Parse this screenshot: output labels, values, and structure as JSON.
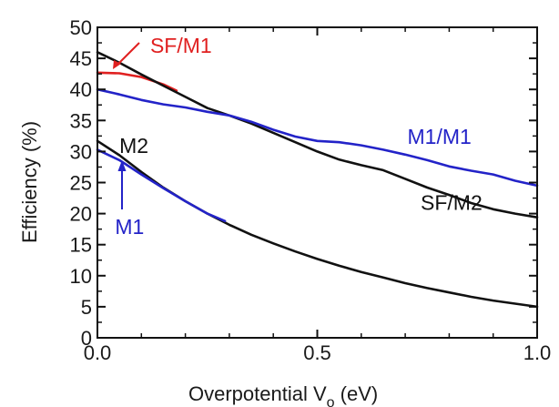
{
  "chart_data": {
    "type": "line",
    "title": "",
    "xlabel": "Overpotential  V",
    "xlabel_sub": "o",
    "xlabel_unit": " (eV)",
    "ylabel": "Efficiency (%)",
    "xlim": [
      0.0,
      1.0
    ],
    "ylim": [
      0,
      50
    ],
    "xticks": [
      0.0,
      0.5,
      1.0
    ],
    "xtick_labels": [
      "0.0",
      "0.5",
      "1.0"
    ],
    "yticks": [
      0,
      5,
      10,
      15,
      20,
      25,
      30,
      35,
      40,
      45,
      50
    ],
    "ytick_labels": [
      "0",
      "5",
      "10",
      "15",
      "20",
      "25",
      "30",
      "35",
      "40",
      "45",
      "50"
    ],
    "grid": false,
    "legend": "none",
    "series": [
      {
        "name": "SF/M1",
        "color": "#e02020",
        "x": [
          0.0,
          0.05,
          0.1,
          0.15,
          0.18
        ],
        "y": [
          42.7,
          42.6,
          42.0,
          40.8,
          39.8
        ]
      },
      {
        "name": "SF/M2",
        "color": "#111111",
        "x": [
          0.0,
          0.05,
          0.1,
          0.15,
          0.2,
          0.25,
          0.3,
          0.35,
          0.4,
          0.45,
          0.5,
          0.55,
          0.6,
          0.65,
          0.7,
          0.75,
          0.8,
          0.85,
          0.9,
          0.95,
          1.0
        ],
        "y": [
          46.0,
          44.3,
          42.4,
          40.6,
          38.8,
          37.0,
          35.8,
          34.5,
          33.0,
          31.5,
          30.0,
          28.7,
          27.8,
          27.0,
          25.6,
          24.2,
          23.0,
          21.7,
          20.7,
          20.0,
          19.4
        ]
      },
      {
        "name": "M1/M1",
        "color": "#2323c8",
        "x": [
          0.0,
          0.05,
          0.1,
          0.15,
          0.2,
          0.25,
          0.3,
          0.35,
          0.4,
          0.45,
          0.5,
          0.55,
          0.6,
          0.65,
          0.7,
          0.75,
          0.8,
          0.85,
          0.9,
          0.95,
          1.0
        ],
        "y": [
          40.0,
          39.2,
          38.3,
          37.6,
          37.1,
          36.4,
          35.8,
          34.8,
          33.5,
          32.4,
          31.7,
          31.5,
          31.0,
          30.3,
          29.5,
          28.6,
          27.6,
          26.9,
          26.3,
          25.3,
          24.5
        ]
      },
      {
        "name": "M2",
        "color": "#111111",
        "x": [
          0.0,
          0.05,
          0.1,
          0.15,
          0.2,
          0.25,
          0.3,
          0.35,
          0.4,
          0.45,
          0.5,
          0.55,
          0.6,
          0.65,
          0.7,
          0.75,
          0.8,
          0.85,
          0.9,
          0.95,
          1.0
        ],
        "y": [
          31.7,
          29.4,
          26.7,
          24.2,
          22.0,
          20.0,
          18.2,
          16.6,
          15.2,
          13.9,
          12.7,
          11.6,
          10.6,
          9.7,
          8.8,
          8.0,
          7.3,
          6.6,
          6.0,
          5.5,
          5.0
        ]
      },
      {
        "name": "M1",
        "color": "#2323c8",
        "x": [
          0.0,
          0.05,
          0.1,
          0.15,
          0.2,
          0.25,
          0.29
        ],
        "y": [
          30.3,
          28.6,
          26.3,
          24.1,
          22.0,
          20.0,
          18.8
        ]
      }
    ],
    "annotations": [
      {
        "text": "SF/M1",
        "color": "#e02020",
        "x": 0.12,
        "y": 45.9
      },
      {
        "text": "M1/M1",
        "color": "#2323c8",
        "x": 0.705,
        "y": 31.2
      },
      {
        "text": "SF/M2",
        "color": "#111111",
        "x": 0.735,
        "y": 20.6
      },
      {
        "text": "M2",
        "color": "#111111",
        "x": 0.05,
        "y": 29.8
      },
      {
        "text": "M1",
        "color": "#2323c8",
        "x": 0.04,
        "y": 16.7
      }
    ]
  }
}
